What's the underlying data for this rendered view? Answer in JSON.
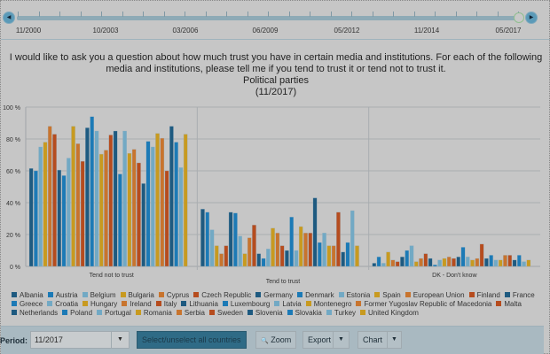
{
  "timeline": {
    "labels": [
      "11/2000",
      "10/2003",
      "03/2006",
      "06/2009",
      "05/2012",
      "11/2014",
      "05/2017"
    ]
  },
  "question": {
    "line1": "I would like to ask you a question about how much trust you have in certain media and institutions. For each of the following",
    "line2": "media and institutions, please tell me if you tend to trust it or tend not to trust it.",
    "topic": "Political parties",
    "period": "(11/2017)"
  },
  "chart_data": {
    "type": "bar",
    "categories": [
      "Tend not to trust",
      "Tend to trust",
      "DK - Don't know"
    ],
    "yticks": [
      "0 %",
      "20 %",
      "40 %",
      "60 %",
      "80 %",
      "100 %"
    ],
    "ylim": [
      0,
      100
    ],
    "grid": true,
    "legend_position": "bottom",
    "palette": [
      "#1e5a80",
      "#1c7ab6",
      "#72a9c4",
      "#c89a20",
      "#c8742e",
      "#b64c1e"
    ],
    "series": [
      {
        "name": "Albania",
        "values": [
          61.5,
          36,
          2
        ]
      },
      {
        "name": "Austria",
        "values": [
          60,
          34,
          6
        ]
      },
      {
        "name": "Belgium",
        "values": [
          75,
          23,
          2
        ]
      },
      {
        "name": "Bulgaria",
        "values": [
          78,
          13,
          9
        ]
      },
      {
        "name": "Cyprus",
        "values": [
          88,
          8,
          4
        ]
      },
      {
        "name": "Czech Republic",
        "values": [
          83,
          13,
          3
        ]
      },
      {
        "name": "Germany",
        "values": [
          60.5,
          34,
          6
        ]
      },
      {
        "name": "Denmark",
        "values": [
          57,
          33.5,
          10
        ]
      },
      {
        "name": "Estonia",
        "values": [
          68,
          19,
          13
        ]
      },
      {
        "name": "Spain",
        "values": [
          88,
          8,
          3
        ]
      },
      {
        "name": "European Union",
        "values": [
          77,
          18,
          5
        ]
      },
      {
        "name": "Finland",
        "values": [
          66,
          26,
          8
        ]
      },
      {
        "name": "France",
        "values": [
          87,
          8,
          5
        ]
      },
      {
        "name": "Greece",
        "values": [
          94,
          5,
          1
        ]
      },
      {
        "name": "Croatia",
        "values": [
          85,
          11,
          4
        ]
      },
      {
        "name": "Hungary",
        "values": [
          70.5,
          24,
          5
        ]
      },
      {
        "name": "Ireland",
        "values": [
          73,
          21,
          6
        ]
      },
      {
        "name": "Italy",
        "values": [
          82.5,
          13,
          5
        ]
      },
      {
        "name": "Lithuania",
        "values": [
          85,
          10,
          6
        ]
      },
      {
        "name": "Luxembourg",
        "values": [
          58,
          31,
          12
        ]
      },
      {
        "name": "Latvia",
        "values": [
          85,
          10,
          6
        ]
      },
      {
        "name": "Montenegro",
        "values": [
          71,
          25,
          4
        ]
      },
      {
        "name": "Former Yugoslav Republic of Macedonia",
        "values": [
          73.5,
          21,
          5
        ]
      },
      {
        "name": "Malta",
        "values": [
          65,
          21,
          14
        ]
      },
      {
        "name": "Netherlands",
        "values": [
          52,
          43,
          5
        ]
      },
      {
        "name": "Poland",
        "values": [
          78.5,
          15,
          7
        ]
      },
      {
        "name": "Portugal",
        "values": [
          75,
          21,
          4
        ]
      },
      {
        "name": "Romania",
        "values": [
          83.5,
          13,
          4
        ]
      },
      {
        "name": "Serbia",
        "values": [
          80.5,
          13,
          7
        ]
      },
      {
        "name": "Sweden",
        "values": [
          60,
          34,
          7
        ]
      },
      {
        "name": "Slovenia",
        "values": [
          88,
          9,
          4
        ]
      },
      {
        "name": "Slovakia",
        "values": [
          78,
          15,
          7
        ]
      },
      {
        "name": "Turkey",
        "values": [
          62,
          35,
          3
        ]
      },
      {
        "name": "United Kingdom",
        "values": [
          83,
          13,
          4
        ]
      }
    ]
  },
  "toolbar": {
    "period_label": "Period:",
    "period_value": "11/2017",
    "select_all": "Select/unselect all countries",
    "zoom": "Zoom",
    "export": "Export",
    "chart": "Chart",
    "arrow": "▼",
    "zoom_icon": "🔍"
  }
}
